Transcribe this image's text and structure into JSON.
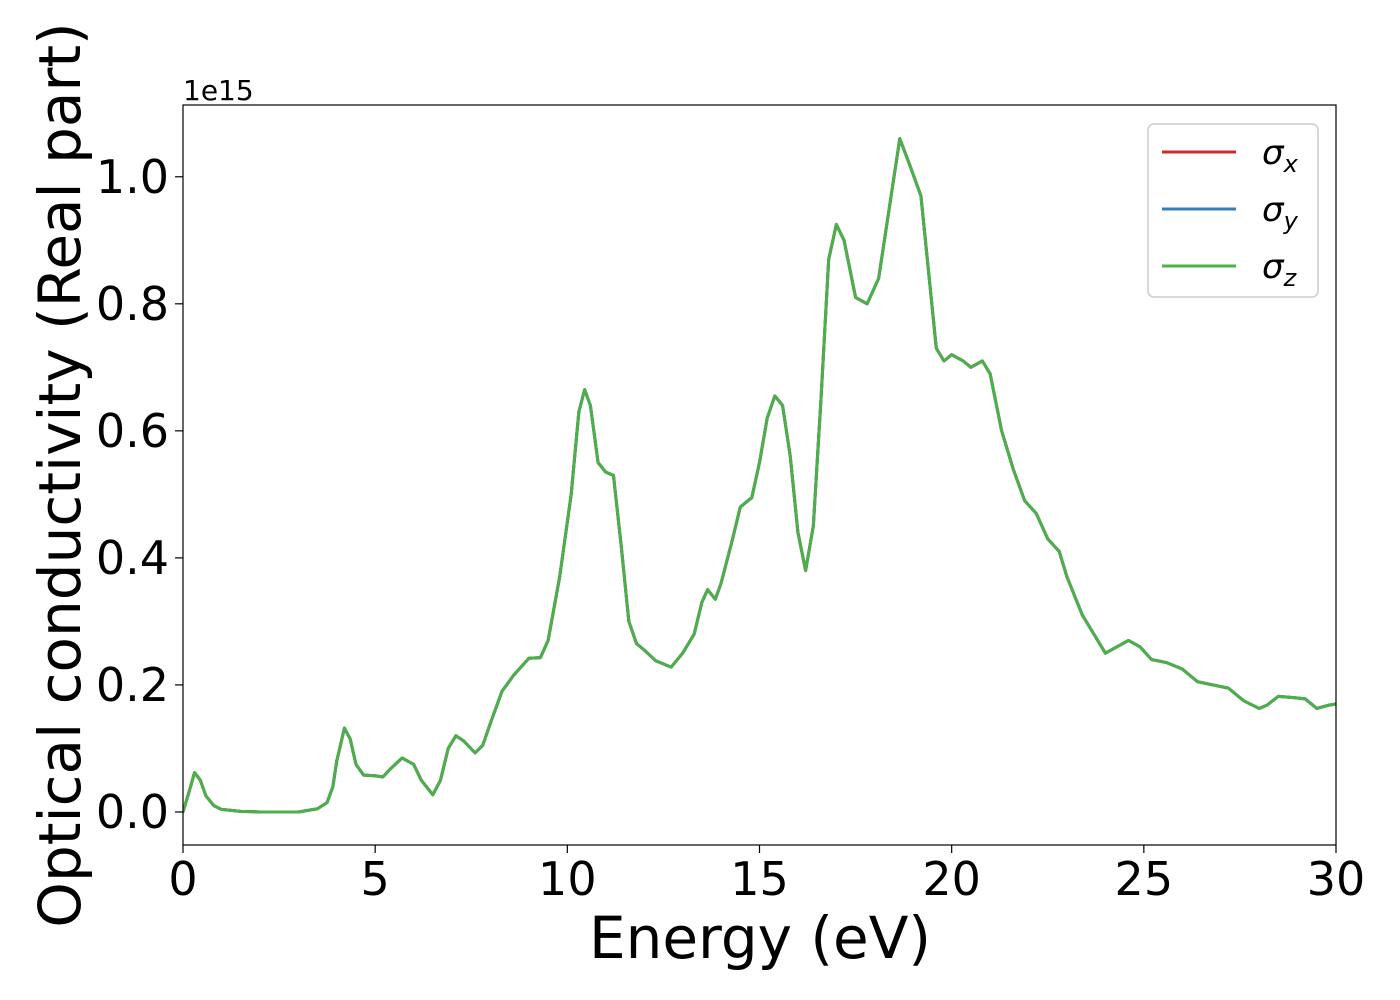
{
  "chart_data": {
    "type": "line",
    "xlabel": "Energy (eV)",
    "ylabel": "Optical conductivity (Real part)",
    "y_offset_label": "1e15",
    "xlim": [
      0,
      30
    ],
    "xticks": [
      0,
      5,
      10,
      15,
      20,
      25,
      30
    ],
    "ylim": [
      -0.052,
      1.113
    ],
    "yticks": [
      {
        "value": 0,
        "label": "0.0"
      },
      {
        "value": 0.2,
        "label": "0.2"
      },
      {
        "value": 0.4,
        "label": "0.4"
      },
      {
        "value": 0.6,
        "label": "0.6"
      },
      {
        "value": 0.8,
        "label": "0.8"
      },
      {
        "value": 1,
        "label": "1.0"
      }
    ],
    "grid": false,
    "legend": "upper right",
    "x": [
      0,
      0.15,
      0.3,
      0.45,
      0.6,
      0.8,
      1.0,
      1.5,
      2,
      3,
      3.5,
      3.75,
      3.9,
      4.0,
      4.2,
      4.35,
      4.5,
      4.7,
      5,
      5.2,
      5.4,
      5.7,
      6.0,
      6.2,
      6.5,
      6.7,
      6.9,
      7.1,
      7.3,
      7.6,
      7.8,
      8.0,
      8.3,
      8.6,
      9.0,
      9.3,
      9.5,
      9.8,
      10.1,
      10.3,
      10.45,
      10.6,
      10.8,
      11.0,
      11.2,
      11.4,
      11.6,
      11.8,
      12.0,
      12.3,
      12.7,
      13.0,
      13.3,
      13.5,
      13.65,
      13.85,
      14.0,
      14.3,
      14.5,
      14.8,
      15.0,
      15.2,
      15.4,
      15.6,
      15.8,
      16.0,
      16.2,
      16.4,
      16.6,
      16.8,
      17.0,
      17.2,
      17.5,
      17.8,
      18.1,
      18.4,
      18.65,
      18.9,
      19.2,
      19.4,
      19.6,
      19.8,
      20.0,
      20.3,
      20.5,
      20.8,
      21.0,
      21.3,
      21.6,
      21.9,
      22.2,
      22.5,
      22.8,
      23.0,
      23.4,
      23.7,
      24.0,
      24.3,
      24.6,
      24.9,
      25.2,
      25.6,
      26.0,
      26.4,
      26.8,
      27.2,
      27.6,
      28.0,
      28.2,
      28.5,
      28.9,
      29.2,
      29.5,
      29.8,
      30
    ],
    "series": [
      {
        "name": "σx",
        "color": "#d62728",
        "values": [
          0.0,
          0.03,
          0.062,
          0.05,
          0.025,
          0.01,
          0.004,
          0.001,
          0.0,
          0.0,
          0.005,
          0.015,
          0.04,
          0.08,
          0.132,
          0.115,
          0.075,
          0.058,
          0.057,
          0.055,
          0.068,
          0.085,
          0.075,
          0.05,
          0.027,
          0.05,
          0.1,
          0.12,
          0.112,
          0.093,
          0.105,
          0.14,
          0.19,
          0.215,
          0.242,
          0.243,
          0.27,
          0.37,
          0.5,
          0.63,
          0.665,
          0.64,
          0.55,
          0.535,
          0.53,
          0.42,
          0.3,
          0.265,
          0.255,
          0.238,
          0.228,
          0.25,
          0.28,
          0.33,
          0.35,
          0.335,
          0.36,
          0.43,
          0.48,
          0.495,
          0.55,
          0.62,
          0.655,
          0.64,
          0.56,
          0.44,
          0.38,
          0.45,
          0.65,
          0.87,
          0.925,
          0.9,
          0.81,
          0.8,
          0.84,
          0.96,
          1.06,
          1.02,
          0.97,
          0.85,
          0.73,
          0.71,
          0.72,
          0.71,
          0.7,
          0.71,
          0.69,
          0.6,
          0.54,
          0.49,
          0.47,
          0.43,
          0.41,
          0.37,
          0.31,
          0.28,
          0.25,
          0.26,
          0.27,
          0.26,
          0.24,
          0.235,
          0.225,
          0.205,
          0.2,
          0.195,
          0.175,
          0.163,
          0.168,
          0.182,
          0.18,
          0.178,
          0.163,
          0.168,
          0.17
        ]
      },
      {
        "name": "σy",
        "color": "#377eb8",
        "values": [
          0.0,
          0.03,
          0.062,
          0.05,
          0.025,
          0.01,
          0.004,
          0.001,
          0.0,
          0.0,
          0.005,
          0.015,
          0.04,
          0.08,
          0.132,
          0.115,
          0.075,
          0.058,
          0.057,
          0.055,
          0.068,
          0.085,
          0.075,
          0.05,
          0.027,
          0.05,
          0.1,
          0.12,
          0.112,
          0.093,
          0.105,
          0.14,
          0.19,
          0.215,
          0.242,
          0.243,
          0.27,
          0.37,
          0.5,
          0.63,
          0.665,
          0.64,
          0.55,
          0.535,
          0.53,
          0.42,
          0.3,
          0.265,
          0.255,
          0.238,
          0.228,
          0.25,
          0.28,
          0.33,
          0.35,
          0.335,
          0.36,
          0.43,
          0.48,
          0.495,
          0.55,
          0.62,
          0.655,
          0.64,
          0.56,
          0.44,
          0.38,
          0.45,
          0.65,
          0.87,
          0.925,
          0.9,
          0.81,
          0.8,
          0.84,
          0.96,
          1.06,
          1.02,
          0.97,
          0.85,
          0.73,
          0.71,
          0.72,
          0.71,
          0.7,
          0.71,
          0.69,
          0.6,
          0.54,
          0.49,
          0.47,
          0.43,
          0.41,
          0.37,
          0.31,
          0.28,
          0.25,
          0.26,
          0.27,
          0.26,
          0.24,
          0.235,
          0.225,
          0.205,
          0.2,
          0.195,
          0.175,
          0.163,
          0.168,
          0.182,
          0.18,
          0.178,
          0.163,
          0.168,
          0.17
        ]
      },
      {
        "name": "σz",
        "color": "#4daf4a",
        "values": [
          0.0,
          0.03,
          0.062,
          0.05,
          0.025,
          0.01,
          0.004,
          0.001,
          0.0,
          0.0,
          0.005,
          0.015,
          0.04,
          0.08,
          0.132,
          0.115,
          0.075,
          0.058,
          0.057,
          0.055,
          0.068,
          0.085,
          0.075,
          0.05,
          0.027,
          0.05,
          0.1,
          0.12,
          0.112,
          0.093,
          0.105,
          0.14,
          0.19,
          0.215,
          0.242,
          0.243,
          0.27,
          0.37,
          0.5,
          0.63,
          0.665,
          0.64,
          0.55,
          0.535,
          0.53,
          0.42,
          0.3,
          0.265,
          0.255,
          0.238,
          0.228,
          0.25,
          0.28,
          0.33,
          0.35,
          0.335,
          0.36,
          0.43,
          0.48,
          0.495,
          0.55,
          0.62,
          0.655,
          0.64,
          0.56,
          0.44,
          0.38,
          0.45,
          0.65,
          0.87,
          0.925,
          0.9,
          0.81,
          0.8,
          0.84,
          0.96,
          1.06,
          1.02,
          0.97,
          0.85,
          0.73,
          0.71,
          0.72,
          0.71,
          0.7,
          0.71,
          0.69,
          0.6,
          0.54,
          0.49,
          0.47,
          0.43,
          0.41,
          0.37,
          0.31,
          0.28,
          0.25,
          0.26,
          0.27,
          0.26,
          0.24,
          0.235,
          0.225,
          0.205,
          0.2,
          0.195,
          0.175,
          0.163,
          0.168,
          0.182,
          0.18,
          0.178,
          0.163,
          0.168,
          0.17
        ]
      }
    ]
  }
}
